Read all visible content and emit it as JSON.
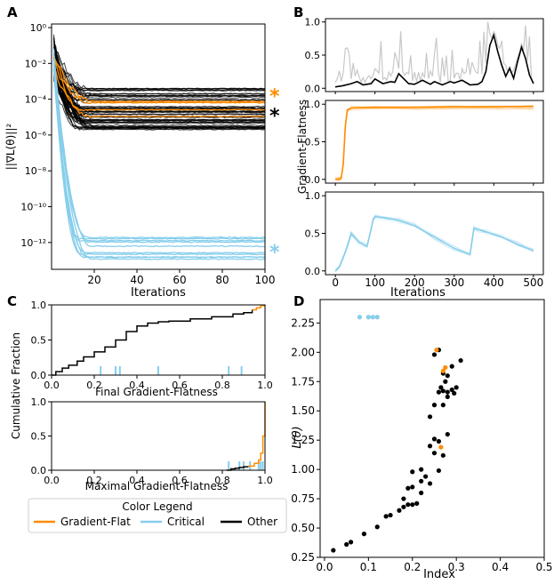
{
  "colors": {
    "flat": "#ff8c00",
    "critical": "#87ceeb",
    "other": "#000000",
    "shade": "#c8c8c8"
  },
  "legend": {
    "title": "Color Legend",
    "entries": [
      "Gradient-Flat",
      "Critical",
      "Other"
    ]
  },
  "panels": {
    "a": "A",
    "b": "B",
    "c": "C",
    "d": "D"
  },
  "chart_data": [
    {
      "panel": "A",
      "type": "line",
      "xlabel": "Iterations",
      "ylabel": "||∇L(θ)||²",
      "xlim": [
        0,
        100
      ],
      "ylim_log10": [
        -13.5,
        0.2
      ],
      "y_scale": "log",
      "x_ticks": [
        "20",
        "40",
        "60",
        "80",
        "100"
      ],
      "y_ticks": [
        "10⁰",
        "10⁻²",
        "10⁻⁴",
        "10⁻⁶",
        "10⁻⁸",
        "10⁻¹⁰",
        "10⁻¹²"
      ],
      "x_tick_values": [
        20,
        40,
        60,
        80,
        100
      ],
      "y_tick_exponents": [
        0,
        -2,
        -4,
        -6,
        -8,
        -10,
        -12
      ],
      "markers": [
        {
          "label": "*",
          "series": "Gradient-Flat",
          "log10_value": -3.6
        },
        {
          "label": "*",
          "series": "Other",
          "log10_value": -4.7
        },
        {
          "label": "*",
          "series": "Critical",
          "log10_value": -12.3
        }
      ],
      "series_summary": [
        {
          "name": "Other",
          "count": 58,
          "start_log10": [
            -3.0,
            -0.6
          ],
          "final_log10": [
            -5.7,
            -3.4
          ],
          "settle_iteration": [
            12,
            22
          ]
        },
        {
          "name": "Gradient-Flat",
          "count": 4,
          "final_log10": [
            -5.0,
            -3.5
          ]
        },
        {
          "name": "Critical",
          "count": 10,
          "final_log10": [
            -13.0,
            -11.7
          ],
          "settle_iteration": [
            13,
            20
          ]
        }
      ]
    },
    {
      "panel": "B",
      "type": "line",
      "xlabel": "Iterations",
      "ylabel": "Gradient-Flatness",
      "xlim": [
        -25,
        525
      ],
      "ylim": [
        -0.05,
        1.05
      ],
      "x_ticks": [
        "0",
        "100",
        "200",
        "300",
        "400",
        "500"
      ],
      "x_tick_values": [
        0,
        100,
        200,
        300,
        400,
        500
      ],
      "y_ticks": [
        "0.0",
        "0.5",
        "1.0"
      ],
      "y_tick_values": [
        0,
        0.5,
        1
      ],
      "subplots": [
        {
          "series": "Other",
          "x": [
            0,
            20,
            40,
            55,
            70,
            90,
            100,
            120,
            140,
            150,
            160,
            185,
            200,
            220,
            240,
            250,
            270,
            290,
            300,
            320,
            340,
            360,
            370,
            380,
            390,
            400,
            410,
            420,
            430,
            440,
            450,
            460,
            470,
            480,
            490,
            500
          ],
          "y": [
            0.02,
            0.04,
            0.07,
            0.1,
            0.05,
            0.07,
            0.14,
            0.07,
            0.1,
            0.09,
            0.22,
            0.07,
            0.06,
            0.12,
            0.06,
            0.1,
            0.05,
            0.1,
            0.08,
            0.12,
            0.05,
            0.06,
            0.1,
            0.25,
            0.65,
            0.8,
            0.55,
            0.35,
            0.18,
            0.3,
            0.15,
            0.4,
            0.62,
            0.45,
            0.2,
            0.07
          ]
        },
        {
          "series": "Gradient-Flat",
          "x": [
            0,
            10,
            15,
            20,
            25,
            30,
            40,
            100,
            200,
            300,
            400,
            500
          ],
          "y": [
            0.0,
            0.0,
            0.02,
            0.2,
            0.7,
            0.92,
            0.95,
            0.96,
            0.96,
            0.965,
            0.965,
            0.97
          ]
        },
        {
          "series": "Critical",
          "x": [
            0,
            10,
            20,
            30,
            40,
            60,
            70,
            80,
            90,
            95,
            100,
            130,
            160,
            200,
            250,
            300,
            340,
            345,
            350,
            360,
            380,
            420,
            460,
            500
          ],
          "y": [
            0.0,
            0.05,
            0.18,
            0.33,
            0.5,
            0.38,
            0.35,
            0.33,
            0.55,
            0.68,
            0.72,
            0.7,
            0.67,
            0.6,
            0.45,
            0.3,
            0.22,
            0.4,
            0.57,
            0.55,
            0.52,
            0.45,
            0.35,
            0.27
          ]
        }
      ]
    },
    {
      "panel": "C-top",
      "type": "line",
      "xlabel": "Final Gradient-Flatness",
      "ylabel": "Cumulative Fraction",
      "xlim": [
        0,
        1
      ],
      "ylim": [
        0,
        1
      ],
      "x_ticks": [
        "0.0",
        "0.2",
        "0.4",
        "0.6",
        "0.8",
        "1.0"
      ],
      "x_tick_values": [
        0,
        0.2,
        0.4,
        0.6,
        0.8,
        1.0
      ],
      "y_ticks": [
        "0.0",
        "0.5",
        "1.0"
      ],
      "y_tick_values": [
        0,
        0.5,
        1.0
      ],
      "cdf_other": [
        [
          0,
          0
        ],
        [
          0.02,
          0.05
        ],
        [
          0.05,
          0.1
        ],
        [
          0.08,
          0.14
        ],
        [
          0.12,
          0.2
        ],
        [
          0.15,
          0.26
        ],
        [
          0.2,
          0.33
        ],
        [
          0.25,
          0.4
        ],
        [
          0.3,
          0.5
        ],
        [
          0.35,
          0.62
        ],
        [
          0.4,
          0.7
        ],
        [
          0.45,
          0.74
        ],
        [
          0.5,
          0.76
        ],
        [
          0.55,
          0.77
        ],
        [
          0.65,
          0.8
        ],
        [
          0.75,
          0.83
        ],
        [
          0.85,
          0.87
        ],
        [
          0.9,
          0.89
        ],
        [
          0.94,
          0.93
        ]
      ],
      "cdf_flat": [
        [
          0.94,
          0.93
        ],
        [
          0.96,
          0.96
        ],
        [
          0.98,
          0.99
        ],
        [
          1.0,
          1.0
        ]
      ],
      "rug_critical": [
        0.23,
        0.3,
        0.32,
        0.5,
        0.83,
        0.89
      ]
    },
    {
      "panel": "C-bottom",
      "type": "line",
      "xlabel": "Maximal Gradient-Flatness",
      "ylabel": "Cumulative Fraction",
      "xlim": [
        0,
        1
      ],
      "ylim": [
        0,
        1
      ],
      "x_ticks": [
        "0.0",
        "0.2",
        "0.4",
        "0.6",
        "0.8",
        "1.0"
      ],
      "x_tick_values": [
        0,
        0.2,
        0.4,
        0.6,
        0.8,
        1.0
      ],
      "y_ticks": [
        "0.0",
        "0.5",
        "1.0"
      ],
      "y_tick_values": [
        0,
        0.5,
        1.0
      ],
      "cdf_other": [
        [
          0.82,
          0.0
        ],
        [
          0.84,
          0.02
        ],
        [
          0.86,
          0.03
        ],
        [
          0.88,
          0.04
        ],
        [
          0.9,
          0.05
        ],
        [
          0.92,
          0.06
        ]
      ],
      "cdf_flat": [
        [
          0.92,
          0.06
        ],
        [
          0.95,
          0.1
        ],
        [
          0.97,
          0.15
        ],
        [
          0.98,
          0.25
        ],
        [
          0.99,
          0.5
        ],
        [
          1.0,
          1.0
        ]
      ],
      "rug_critical": [
        0.83,
        0.88,
        0.9,
        0.93,
        0.97,
        0.98,
        0.99
      ]
    },
    {
      "panel": "D",
      "type": "scatter",
      "xlabel": "Index",
      "ylabel": "L(θ)",
      "xlim": [
        -0.01,
        0.5
      ],
      "ylim": [
        0.25,
        2.45
      ],
      "x_ticks": [
        "0.0",
        "0.1",
        "0.2",
        "0.3",
        "0.4",
        "0.5"
      ],
      "x_tick_values": [
        0,
        0.1,
        0.2,
        0.3,
        0.4,
        0.5
      ],
      "y_ticks": [
        "0.25",
        "0.50",
        "0.75",
        "1.00",
        "1.25",
        "1.50",
        "1.75",
        "2.00",
        "2.25"
      ],
      "y_tick_values": [
        0.25,
        0.5,
        0.75,
        1.0,
        1.25,
        1.5,
        1.75,
        2.0,
        2.25
      ],
      "series": [
        {
          "name": "Critical",
          "points": [
            [
              0.08,
              2.3
            ],
            [
              0.1,
              2.3
            ],
            [
              0.11,
              2.3
            ],
            [
              0.12,
              2.3
            ]
          ]
        },
        {
          "name": "Gradient-Flat",
          "points": [
            [
              0.255,
              2.02
            ],
            [
              0.275,
              1.87
            ],
            [
              0.27,
              1.84
            ],
            [
              0.265,
              1.19
            ]
          ]
        },
        {
          "name": "Other",
          "points": [
            [
              0.02,
              0.31
            ],
            [
              0.05,
              0.36
            ],
            [
              0.06,
              0.38
            ],
            [
              0.09,
              0.45
            ],
            [
              0.12,
              0.51
            ],
            [
              0.14,
              0.6
            ],
            [
              0.15,
              0.61
            ],
            [
              0.17,
              0.65
            ],
            [
              0.18,
              0.68
            ],
            [
              0.19,
              0.7
            ],
            [
              0.18,
              0.75
            ],
            [
              0.2,
              0.7
            ],
            [
              0.21,
              0.71
            ],
            [
              0.22,
              0.8
            ],
            [
              0.19,
              0.84
            ],
            [
              0.2,
              0.85
            ],
            [
              0.22,
              0.9
            ],
            [
              0.24,
              0.88
            ],
            [
              0.2,
              0.98
            ],
            [
              0.22,
              1.0
            ],
            [
              0.23,
              0.94
            ],
            [
              0.26,
              0.99
            ],
            [
              0.27,
              1.12
            ],
            [
              0.25,
              1.14
            ],
            [
              0.24,
              1.2
            ],
            [
              0.25,
              1.26
            ],
            [
              0.26,
              1.24
            ],
            [
              0.28,
              1.3
            ],
            [
              0.24,
              1.45
            ],
            [
              0.25,
              1.55
            ],
            [
              0.27,
              1.55
            ],
            [
              0.26,
              1.66
            ],
            [
              0.27,
              1.67
            ],
            [
              0.28,
              1.66
            ],
            [
              0.29,
              1.68
            ],
            [
              0.3,
              1.7
            ],
            [
              0.27,
              1.82
            ],
            [
              0.28,
              1.8
            ],
            [
              0.29,
              1.88
            ],
            [
              0.31,
              1.93
            ],
            [
              0.26,
              2.02
            ],
            [
              0.25,
              1.98
            ],
            [
              0.28,
              1.62
            ],
            [
              0.295,
              1.65
            ],
            [
              0.275,
              1.75
            ],
            [
              0.265,
              1.7
            ]
          ]
        }
      ]
    }
  ]
}
